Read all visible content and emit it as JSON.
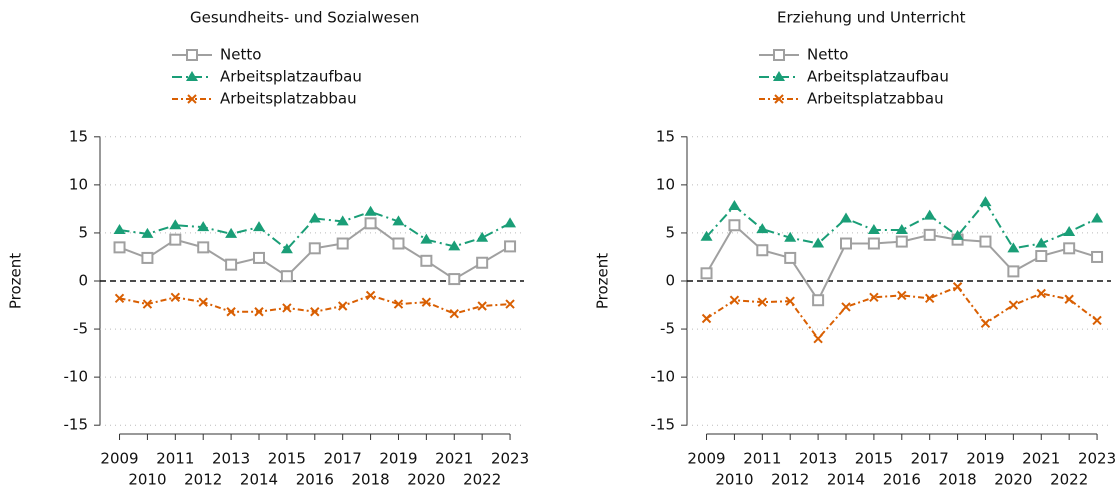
{
  "chart_data": [
    {
      "type": "line",
      "title": "Gesundheits- und Sozialwesen",
      "ylabel": "Prozent",
      "x": [
        2009,
        2010,
        2011,
        2012,
        2013,
        2014,
        2015,
        2016,
        2017,
        2018,
        2019,
        2020,
        2021,
        2022,
        2023
      ],
      "xlim": [
        2008.3,
        2023.5
      ],
      "xticks": [
        2009,
        2010,
        2011,
        2012,
        2013,
        2014,
        2015,
        2016,
        2017,
        2018,
        2019,
        2020,
        2021,
        2022,
        2023
      ],
      "ylim": [
        -15.5,
        15.5
      ],
      "yticks": [
        -15,
        -10,
        -5,
        0,
        5,
        10,
        15
      ],
      "grid": true,
      "reference_line": 0,
      "series": [
        {
          "name": "Netto",
          "color": "#a0a0a0",
          "marker": "square",
          "values": [
            3.5,
            2.4,
            4.3,
            3.5,
            1.7,
            2.4,
            0.5,
            3.4,
            3.9,
            6.0,
            3.9,
            2.1,
            0.2,
            1.9,
            3.6
          ]
        },
        {
          "name": "Arbeitsplatzaufbau",
          "color": "#1a9e77",
          "marker": "triangle",
          "values": [
            5.3,
            4.9,
            5.8,
            5.6,
            4.9,
            5.6,
            3.3,
            6.5,
            6.2,
            7.2,
            6.2,
            4.3,
            3.6,
            4.5,
            6.0
          ]
        },
        {
          "name": "Arbeitsplatzabbau",
          "color": "#d95f02",
          "marker": "x",
          "values": [
            -1.8,
            -2.4,
            -1.7,
            -2.2,
            -3.2,
            -3.2,
            -2.8,
            -3.2,
            -2.6,
            -1.5,
            -2.4,
            -2.2,
            -3.4,
            -2.6,
            -2.4
          ]
        }
      ]
    },
    {
      "type": "line",
      "title": "Erziehung und Unterricht",
      "ylabel": "Prozent",
      "x": [
        2009,
        2010,
        2011,
        2012,
        2013,
        2014,
        2015,
        2016,
        2017,
        2018,
        2019,
        2020,
        2021,
        2022,
        2023
      ],
      "xlim": [
        2008.3,
        2023.5
      ],
      "xticks": [
        2009,
        2010,
        2011,
        2012,
        2013,
        2014,
        2015,
        2016,
        2017,
        2018,
        2019,
        2020,
        2021,
        2022,
        2023
      ],
      "ylim": [
        -15.5,
        15.5
      ],
      "yticks": [
        -15,
        -10,
        -5,
        0,
        5,
        10,
        15
      ],
      "grid": true,
      "reference_line": 0,
      "series": [
        {
          "name": "Netto",
          "color": "#a0a0a0",
          "marker": "square",
          "values": [
            0.8,
            5.8,
            3.2,
            2.4,
            -2.0,
            3.9,
            3.9,
            4.1,
            4.8,
            4.3,
            4.1,
            1.0,
            2.6,
            3.4,
            2.5
          ]
        },
        {
          "name": "Arbeitsplatzaufbau",
          "color": "#1a9e77",
          "marker": "triangle",
          "values": [
            4.6,
            7.8,
            5.4,
            4.5,
            3.9,
            6.5,
            5.3,
            5.3,
            6.8,
            4.7,
            8.2,
            3.4,
            3.9,
            5.1,
            6.5
          ]
        },
        {
          "name": "Arbeitsplatzabbau",
          "color": "#d95f02",
          "marker": "x",
          "values": [
            -3.9,
            -2.0,
            -2.2,
            -2.1,
            -6.0,
            -2.7,
            -1.7,
            -1.5,
            -1.8,
            -0.6,
            -4.4,
            -2.5,
            -1.3,
            -1.9,
            -4.1
          ]
        }
      ]
    }
  ]
}
